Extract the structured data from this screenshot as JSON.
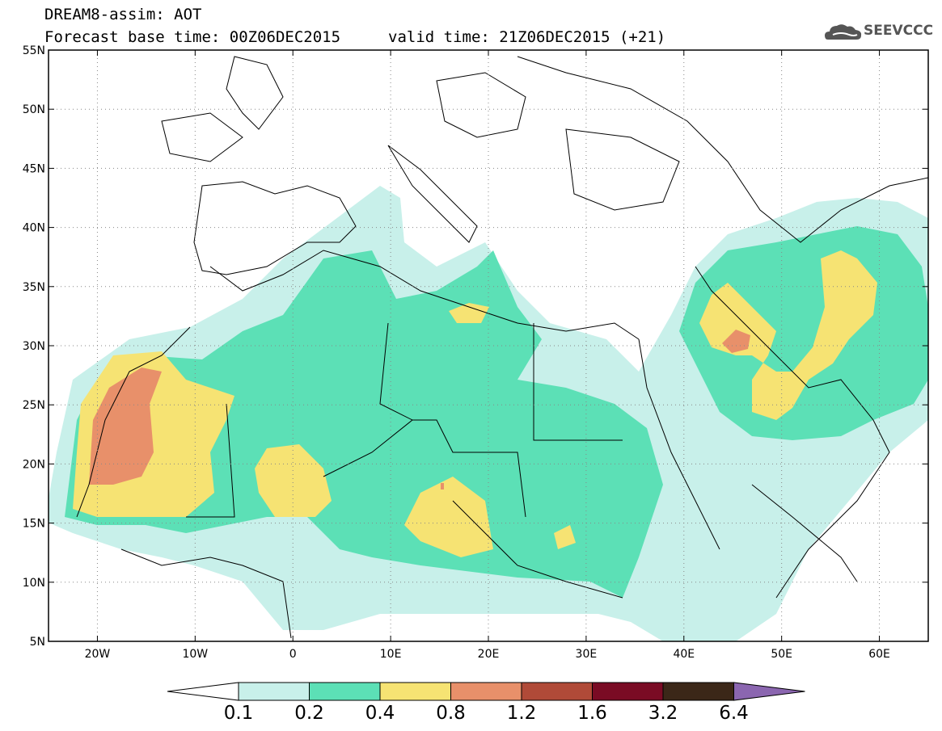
{
  "header": {
    "title_line1": "DREAM8-assim: AOT",
    "title_line2": "Forecast base time: 00Z06DEC2015",
    "title_line3": "valid time: 21Z06DEC2015 (+21)",
    "logo_text": "SEEVCCC",
    "logo_icon": "cloud-icon"
  },
  "map": {
    "lat_labels": [
      "55N",
      "50N",
      "45N",
      "40N",
      "35N",
      "30N",
      "25N",
      "20N",
      "15N",
      "10N",
      "5N"
    ],
    "lon_labels": [
      "20W",
      "10W",
      "0",
      "10E",
      "20E",
      "30E",
      "40E",
      "50E",
      "60E"
    ],
    "lon_range": [
      -25,
      65
    ],
    "lat_range": [
      5,
      55
    ],
    "grid": "dotted"
  },
  "colorbar": {
    "colors": [
      "#ffffff",
      "#c8f0ea",
      "#5ce0b6",
      "#f6e373",
      "#e8906a",
      "#b04a38",
      "#7a0b24",
      "#3b2718",
      "#8b66b0"
    ],
    "labels": [
      "0.1",
      "0.2",
      "0.4",
      "0.8",
      "1.2",
      "1.6",
      "3.2",
      "6.4"
    ]
  }
}
